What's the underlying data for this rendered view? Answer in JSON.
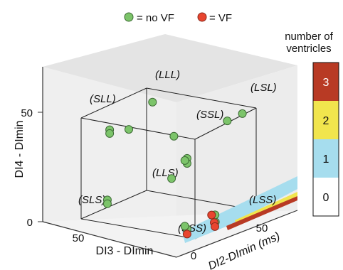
{
  "chart_data": {
    "type": "scatter",
    "projection": "3d-cube",
    "legend": {
      "placement": "top-center",
      "entries": [
        {
          "name": "= no VF",
          "color": "#7cc46a"
        },
        {
          "name": "= VF",
          "color": "#e8452f"
        }
      ]
    },
    "axes": {
      "x": {
        "label": "DI3 - DImin",
        "ticks": [
          "0",
          "50"
        ],
        "range": [
          0,
          100
        ]
      },
      "y": {
        "label": "DI2-DImin (ms)",
        "ticks": [
          "0",
          "50"
        ],
        "range": [
          0,
          100
        ]
      },
      "z": {
        "label": "DI4 - DImin",
        "ticks": [
          "0",
          "50"
        ],
        "range": [
          0,
          80
        ]
      }
    },
    "colorbar": {
      "title_line1": "number of",
      "title_line2": "ventricles",
      "levels": [
        {
          "label": "3",
          "color": "#b83a24"
        },
        {
          "label": "2",
          "color": "#f1e54d"
        },
        {
          "label": "1",
          "color": "#a6ddee"
        },
        {
          "label": "0",
          "color": "#ffffff"
        }
      ]
    },
    "corner_labels": [
      "(SLL)",
      "(LLL)",
      "(SSL)",
      "(LSL)",
      "(SLS)",
      "(LLS)",
      "(SSS)",
      "(LSS)"
    ],
    "points_no_vf": [
      {
        "x": 8,
        "y": 2,
        "z": 62
      },
      {
        "x": 8,
        "y": 2,
        "z": 58
      },
      {
        "x": 10,
        "y": 2,
        "z": 60
      },
      {
        "x": 76,
        "y": 2,
        "z": 74
      },
      {
        "x": 76,
        "y": 2,
        "z": 71
      },
      {
        "x": 40,
        "y": 40,
        "z": 66
      },
      {
        "x": 20,
        "y": 90,
        "z": 70
      },
      {
        "x": 85,
        "y": 50,
        "z": 62
      },
      {
        "x": 10,
        "y": 96,
        "z": 76
      },
      {
        "x": 90,
        "y": 98,
        "z": 72
      },
      {
        "x": 8,
        "y": 2,
        "z": 6
      },
      {
        "x": 10,
        "y": 2,
        "z": 8
      },
      {
        "x": 78,
        "y": 2,
        "z": 18
      },
      {
        "x": 78,
        "y": 2,
        "z": 15
      },
      {
        "x": 70,
        "y": 92,
        "z": 16
      },
      {
        "x": 10,
        "y": 52,
        "z": 0
      },
      {
        "x": 20,
        "y": 70,
        "z": 0
      }
    ],
    "points_vf": [
      {
        "x": 8,
        "y": 2,
        "z": 2
      },
      {
        "x": 10,
        "y": 50,
        "z": 0
      },
      {
        "x": 22,
        "y": 68,
        "z": 0
      },
      {
        "x": 4,
        "y": 40,
        "z": 0
      }
    ]
  }
}
